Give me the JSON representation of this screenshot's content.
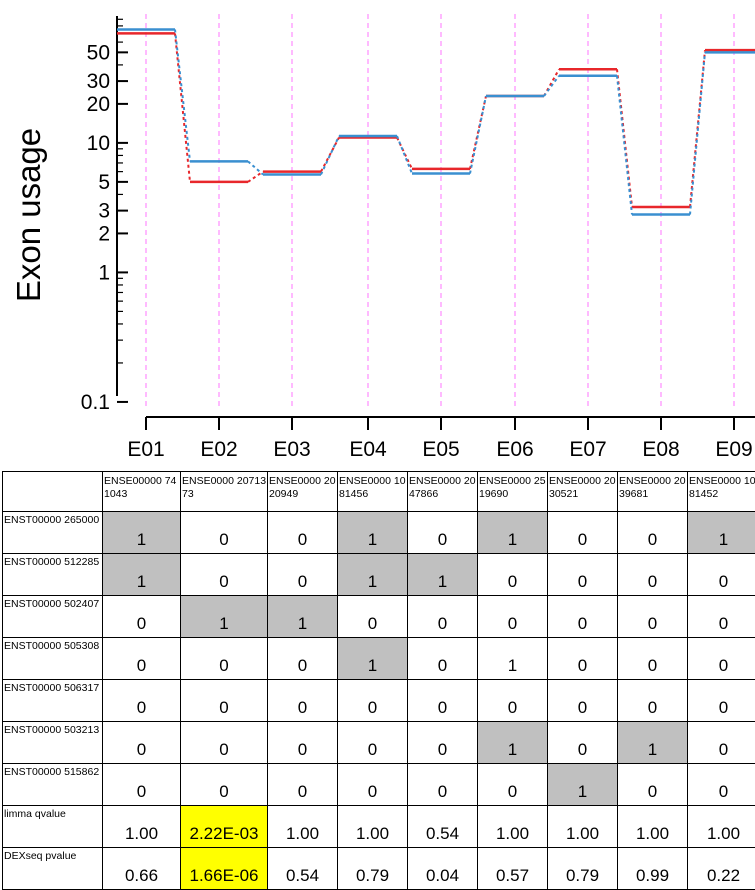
{
  "chart_data": {
    "type": "line",
    "ylabel": "Exon usage",
    "yscale": "log",
    "ylim": [
      0.07,
      110
    ],
    "yticks": [
      0.1,
      1,
      2,
      3,
      5,
      10,
      20,
      30,
      50
    ],
    "ytick_labels": [
      "0.1",
      "1",
      "2",
      "3",
      "5",
      "10",
      "20",
      "30",
      "50"
    ],
    "categories": [
      "E01",
      "E02",
      "E03",
      "E04",
      "E05",
      "E06",
      "E07",
      "E08",
      "E09"
    ],
    "grid": "vertical dashed lines at each exon",
    "colors": {
      "series_red": "#e8272b",
      "series_blue": "#3a8fd0",
      "grid": "#ff8cff"
    },
    "series": [
      {
        "color": "#e8272b",
        "values": [
          70,
          5,
          6,
          11,
          6.3,
          23,
          37,
          3.2,
          52
        ]
      },
      {
        "color": "#3a8fd0",
        "values": [
          75,
          7.2,
          5.7,
          11.3,
          5.8,
          23,
          33,
          2.8,
          50
        ]
      }
    ]
  },
  "table": {
    "columns": [
      "ENSE00000 741043",
      "ENSE0000 2071373",
      "ENSE0000 2020949",
      "ENSE0000 1081456",
      "ENSE0000 2047866",
      "ENSE0000 2519690",
      "ENSE0000 2030521",
      "ENSE0000 2039681",
      "ENSE0000 1081452"
    ],
    "rows": [
      {
        "label": "ENST00000 265000",
        "values": [
          "1",
          "0",
          "0",
          "1",
          "0",
          "1",
          "0",
          "0",
          "1"
        ],
        "highlight": [
          1,
          0,
          0,
          1,
          0,
          1,
          0,
          0,
          1
        ]
      },
      {
        "label": "ENST00000 512285",
        "values": [
          "1",
          "0",
          "0",
          "1",
          "1",
          "0",
          "0",
          "0",
          "0"
        ],
        "highlight": [
          1,
          0,
          0,
          1,
          1,
          0,
          0,
          0,
          0
        ]
      },
      {
        "label": "ENST00000 502407",
        "values": [
          "0",
          "1",
          "1",
          "0",
          "0",
          "0",
          "0",
          "0",
          "0"
        ],
        "highlight": [
          0,
          1,
          1,
          0,
          0,
          0,
          0,
          0,
          0
        ]
      },
      {
        "label": "ENST00000 505308",
        "values": [
          "0",
          "0",
          "0",
          "1",
          "0",
          "1",
          "0",
          "0",
          "0"
        ],
        "highlight": [
          0,
          0,
          0,
          1,
          0,
          0,
          0,
          0,
          0
        ]
      },
      {
        "label": "ENST00000 506317",
        "values": [
          "0",
          "0",
          "0",
          "0",
          "0",
          "0",
          "0",
          "0",
          "0"
        ],
        "highlight": [
          0,
          0,
          0,
          0,
          0,
          0,
          0,
          0,
          0
        ]
      },
      {
        "label": "ENST00000 503213",
        "values": [
          "0",
          "0",
          "0",
          "0",
          "0",
          "1",
          "0",
          "1",
          "0"
        ],
        "highlight": [
          0,
          0,
          0,
          0,
          0,
          1,
          0,
          1,
          0
        ]
      },
      {
        "label": "ENST00000 515862",
        "values": [
          "0",
          "0",
          "0",
          "0",
          "0",
          "0",
          "1",
          "0",
          "0"
        ],
        "highlight": [
          0,
          0,
          0,
          0,
          0,
          0,
          1,
          0,
          0
        ]
      }
    ],
    "stats": [
      {
        "label": "limma qvalue",
        "values": [
          "1.00",
          "2.22E-03",
          "1.00",
          "1.00",
          "0.54",
          "1.00",
          "1.00",
          "1.00",
          "1.00"
        ],
        "yellow": [
          0,
          1,
          0,
          0,
          0,
          0,
          0,
          0,
          0
        ]
      },
      {
        "label": "DEXseq pvalue",
        "values": [
          "0.66",
          "1.66E-06",
          "0.54",
          "0.79",
          "0.04",
          "0.57",
          "0.79",
          "0.99",
          "0.22"
        ],
        "yellow": [
          0,
          1,
          0,
          0,
          0,
          0,
          0,
          0,
          0
        ]
      }
    ]
  }
}
